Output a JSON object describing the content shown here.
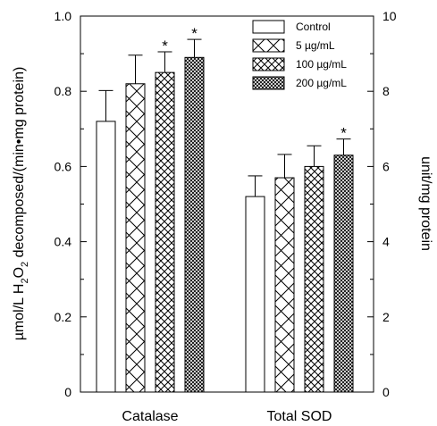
{
  "chart_data": {
    "type": "bar",
    "categories": [
      "Catalase",
      "Total SOD"
    ],
    "series": [
      {
        "name": "Control",
        "values": [
          0.72,
          0.52
        ],
        "errors": [
          0.082,
          0.055
        ],
        "significant": [
          false,
          false
        ],
        "pattern": "none"
      },
      {
        "name": "5 µg/mL",
        "values": [
          0.82,
          0.57
        ],
        "errors": [
          0.076,
          0.062
        ],
        "significant": [
          false,
          false
        ],
        "pattern": "cross-coarse"
      },
      {
        "name": "100 µg/mL",
        "values": [
          0.85,
          0.6
        ],
        "errors": [
          0.055,
          0.055
        ],
        "significant": [
          true,
          false
        ],
        "pattern": "cross-medium"
      },
      {
        "name": "200 µg/mL",
        "values": [
          0.89,
          0.63
        ],
        "errors": [
          0.048,
          0.043
        ],
        "significant": [
          true,
          true
        ],
        "pattern": "cross-fine"
      }
    ],
    "significance_marker": "*",
    "ylabel_left": {
      "pre": "µmol/L H",
      "sub1": "2",
      "mid": "O",
      "sub2": "2",
      "post": " decomposed/(min•mg protein)"
    },
    "ylim_left": [
      0,
      1.0
    ],
    "yticks_left": [
      "0",
      "0.2",
      "0.4",
      "0.6",
      "0.8",
      "1.0"
    ],
    "ylabel_right": "unit/mg protein",
    "ylim_right": [
      0,
      10
    ],
    "yticks_right": [
      "0",
      "2",
      "4",
      "6",
      "8",
      "10"
    ],
    "legend_position": "top-right",
    "grid": false
  }
}
